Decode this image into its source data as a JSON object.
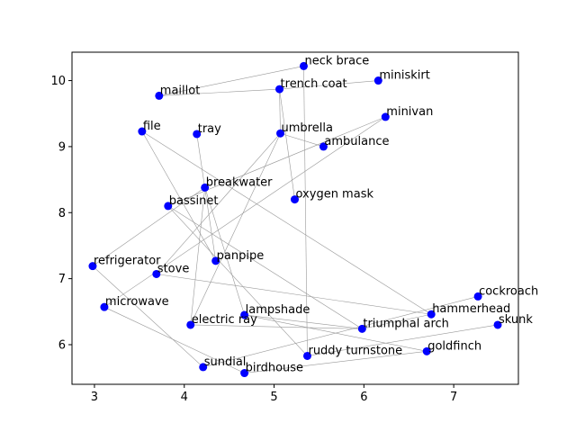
{
  "chart_data": {
    "type": "scatter",
    "title": "",
    "xlabel": "",
    "ylabel": "",
    "xlim": [
      2.75,
      7.72
    ],
    "ylim": [
      5.4,
      10.43
    ],
    "x_ticks": [
      3,
      4,
      5,
      6,
      7
    ],
    "y_ticks": [
      6,
      7,
      8,
      9,
      10
    ],
    "grid": false,
    "point_color": "#0000ff",
    "edge_color": "#999999",
    "points": [
      {
        "label": "neck brace",
        "x": 5.33,
        "y": 10.22
      },
      {
        "label": "miniskirt",
        "x": 6.16,
        "y": 10.0
      },
      {
        "label": "trench coat",
        "x": 5.06,
        "y": 9.87
      },
      {
        "label": "maillot",
        "x": 3.72,
        "y": 9.77
      },
      {
        "label": "minivan",
        "x": 6.24,
        "y": 9.45
      },
      {
        "label": "file",
        "x": 3.53,
        "y": 9.23
      },
      {
        "label": "tray",
        "x": 4.14,
        "y": 9.19
      },
      {
        "label": "umbrella",
        "x": 5.07,
        "y": 9.2
      },
      {
        "label": "ambulance",
        "x": 5.55,
        "y": 9.0
      },
      {
        "label": "breakwater",
        "x": 4.23,
        "y": 8.38
      },
      {
        "label": "oxygen mask",
        "x": 5.23,
        "y": 8.2
      },
      {
        "label": "bassinet",
        "x": 3.82,
        "y": 8.1
      },
      {
        "label": "panpipe",
        "x": 4.35,
        "y": 7.27
      },
      {
        "label": "refrigerator",
        "x": 2.98,
        "y": 7.19
      },
      {
        "label": "stove",
        "x": 3.69,
        "y": 7.07
      },
      {
        "label": "cockroach",
        "x": 7.27,
        "y": 6.73
      },
      {
        "label": "microwave",
        "x": 3.11,
        "y": 6.57
      },
      {
        "label": "hammerhead",
        "x": 6.75,
        "y": 6.46
      },
      {
        "label": "lampshade",
        "x": 4.67,
        "y": 6.45
      },
      {
        "label": "electric ray",
        "x": 4.07,
        "y": 6.3
      },
      {
        "label": "skunk",
        "x": 7.49,
        "y": 6.3
      },
      {
        "label": "triumphal arch",
        "x": 5.98,
        "y": 6.24
      },
      {
        "label": "goldfinch",
        "x": 6.7,
        "y": 5.9
      },
      {
        "label": "ruddy turnstone",
        "x": 5.37,
        "y": 5.83
      },
      {
        "label": "sundial",
        "x": 4.21,
        "y": 5.66
      },
      {
        "label": "birdhouse",
        "x": 4.67,
        "y": 5.57
      }
    ],
    "edges": [
      [
        "maillot",
        "trench coat"
      ],
      [
        "maillot",
        "neck brace"
      ],
      [
        "trench coat",
        "miniskirt"
      ],
      [
        "trench coat",
        "umbrella"
      ],
      [
        "trench coat",
        "oxygen mask"
      ],
      [
        "neck brace",
        "ruddy turnstone"
      ],
      [
        "umbrella",
        "ambulance"
      ],
      [
        "umbrella",
        "electric ray"
      ],
      [
        "umbrella",
        "stove"
      ],
      [
        "minivan",
        "bassinet"
      ],
      [
        "minivan",
        "microwave"
      ],
      [
        "file",
        "panpipe"
      ],
      [
        "file",
        "hammerhead"
      ],
      [
        "tray",
        "panpipe"
      ],
      [
        "breakwater",
        "refrigerator"
      ],
      [
        "breakwater",
        "electric ray"
      ],
      [
        "breakwater",
        "lampshade"
      ],
      [
        "bassinet",
        "ruddy turnstone"
      ],
      [
        "bassinet",
        "triumphal arch"
      ],
      [
        "stove",
        "hammerhead"
      ],
      [
        "electric ray",
        "triumphal arch"
      ],
      [
        "lampshade",
        "triumphal arch"
      ],
      [
        "lampshade",
        "goldfinch"
      ],
      [
        "refrigerator",
        "sundial"
      ],
      [
        "microwave",
        "birdhouse"
      ],
      [
        "cockroach",
        "sundial"
      ],
      [
        "skunk",
        "ruddy turnstone"
      ],
      [
        "goldfinch",
        "birdhouse"
      ],
      [
        "triumphal arch",
        "hammerhead"
      ]
    ]
  }
}
